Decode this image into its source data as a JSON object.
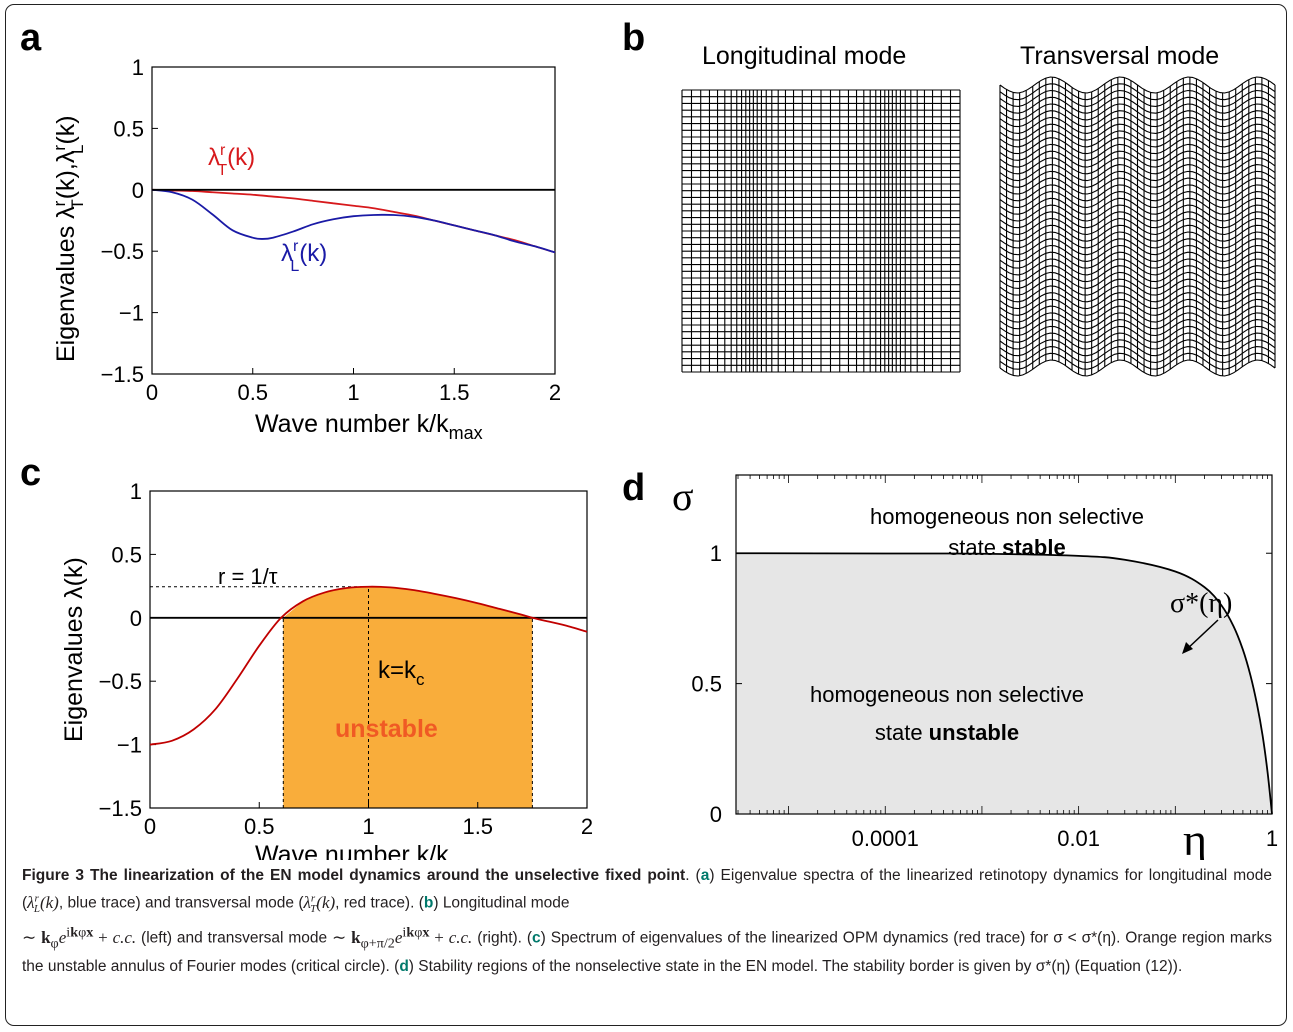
{
  "panels": {
    "a": {
      "label": "a",
      "chart_data": {
        "type": "line",
        "xlabel": "Wave number k/k",
        "xlabel_sub": "max",
        "ylabel": "Eigenvalues λ",
        "xlim": [
          0,
          2
        ],
        "ylim": [
          -1.5,
          1
        ],
        "xticks": [
          "0",
          "0.5",
          "1",
          "1.5",
          "2"
        ],
        "yticks": [
          "1",
          "0.5",
          "0",
          "−0.5",
          "−1",
          "−1.5"
        ],
        "xtick_values": [
          0,
          0.5,
          1,
          1.5,
          2
        ],
        "ytick_values": [
          1,
          0.5,
          0,
          -0.5,
          -1,
          -1.5
        ],
        "series": [
          {
            "name": "λ_T^r(k)",
            "color": "#d7191c",
            "x": [
              0,
              0.1,
              0.2,
              0.3,
              0.4,
              0.5,
              0.6,
              0.7,
              0.8,
              0.9,
              1.0,
              1.1,
              1.2,
              1.3,
              1.4,
              1.5,
              1.6,
              1.7,
              1.8,
              1.9,
              2.0
            ],
            "y": [
              0,
              -0.005,
              -0.01,
              -0.02,
              -0.03,
              -0.04,
              -0.055,
              -0.07,
              -0.09,
              -0.11,
              -0.13,
              -0.15,
              -0.18,
              -0.21,
              -0.25,
              -0.29,
              -0.33,
              -0.37,
              -0.41,
              -0.46,
              -0.51
            ]
          },
          {
            "name": "λ_L^r(k)",
            "color": "#1a1aa6",
            "x": [
              0,
              0.1,
              0.2,
              0.3,
              0.4,
              0.5,
              0.55,
              0.6,
              0.7,
              0.8,
              0.9,
              1.0,
              1.1,
              1.2,
              1.3,
              1.4,
              1.5,
              1.6,
              1.7,
              1.8,
              1.9,
              2.0
            ],
            "y": [
              0,
              -0.02,
              -0.08,
              -0.2,
              -0.33,
              -0.39,
              -0.4,
              -0.39,
              -0.34,
              -0.28,
              -0.24,
              -0.215,
              -0.205,
              -0.205,
              -0.22,
              -0.25,
              -0.29,
              -0.33,
              -0.37,
              -0.42,
              -0.46,
              -0.51
            ]
          },
          {
            "name": "",
            "color": "#000000",
            "x": [
              0,
              2
            ],
            "y": [
              0,
              0
            ]
          }
        ],
        "annotations": [
          {
            "text": "λ",
            "sup": "r",
            "sub": "T",
            "tail": "(k)",
            "color": "#d7191c"
          },
          {
            "text": "λ",
            "sup": "r",
            "sub": "L",
            "tail": "(k)",
            "color": "#1a1aa6"
          }
        ]
      }
    },
    "b": {
      "label": "b",
      "left_title": "Longitudinal mode",
      "right_title": "Transversal mode"
    },
    "c": {
      "label": "c",
      "chart_data": {
        "type": "line",
        "xlabel": "Wave number k/k",
        "xlabel_sub": "c",
        "ylabel": "Eigenvalues λ(k)",
        "xlim": [
          0,
          2
        ],
        "ylim": [
          -1.5,
          1
        ],
        "xticks": [
          "0",
          "0.5",
          "1",
          "1.5",
          "2"
        ],
        "yticks": [
          "1",
          "0.5",
          "0",
          "−0.5",
          "−1",
          "−1.5"
        ],
        "xtick_values": [
          0,
          0.5,
          1,
          1.5,
          2
        ],
        "ytick_values": [
          1,
          0.5,
          0,
          -0.5,
          -1,
          -1.5
        ],
        "series": [
          {
            "name": "λ(k)",
            "color": "#c00000",
            "x": [
              0,
              0.1,
              0.2,
              0.3,
              0.4,
              0.5,
              0.6,
              0.7,
              0.8,
              0.9,
              1.0,
              1.1,
              1.2,
              1.3,
              1.4,
              1.5,
              1.6,
              1.7,
              1.75,
              1.8,
              1.9,
              2.0
            ],
            "y": [
              -1.0,
              -0.97,
              -0.88,
              -0.72,
              -0.48,
              -0.22,
              0.0,
              0.13,
              0.2,
              0.235,
              0.245,
              0.24,
              0.22,
              0.19,
              0.155,
              0.115,
              0.07,
              0.025,
              0.0,
              -0.02,
              -0.06,
              -0.11
            ]
          }
        ],
        "unstable_range": [
          0.61,
          1.75
        ],
        "fill_color": "#f9ad3b",
        "annotations": {
          "r_label": "r = 1/τ",
          "kc_label": "k=k",
          "kc_sub": "c",
          "unstable_label": "unstable",
          "unstable_color": "#f05a24"
        }
      }
    },
    "d": {
      "label": "d",
      "chart_data": {
        "type": "line",
        "xlabel": "η",
        "ylabel": "σ",
        "xscale": "log",
        "xlim": [
          2.86e-06,
          1
        ],
        "ylim": [
          0,
          1.3
        ],
        "xticks": [
          "0.0001",
          "0.01",
          "1"
        ],
        "xtick_values": [
          0.0001,
          0.01,
          1
        ],
        "yticks": [
          "1",
          "0.5",
          "0"
        ],
        "ytick_values": [
          1,
          0.5,
          0
        ],
        "series": [
          {
            "name": "σ*(η)",
            "color": "#000000",
            "x": [
              2.9e-06,
              0.0001,
              0.001,
              0.01,
              0.03,
              0.1,
              0.2,
              0.3,
              0.4,
              0.5,
              0.6,
              0.7,
              0.8,
              0.9,
              1.0
            ],
            "y": [
              1.0,
              0.999,
              0.998,
              0.99,
              0.975,
              0.93,
              0.87,
              0.8,
              0.72,
              0.63,
              0.53,
              0.42,
              0.3,
              0.16,
              0.0
            ]
          }
        ],
        "stable_text": "homogeneous non selective",
        "stable_text2_a": "state ",
        "stable_text2_b": "stable",
        "unstable_text": "homogeneous non selective",
        "unstable_text2_a": "state ",
        "unstable_text2_b": "unstable",
        "border_label": "σ*(η)",
        "unstable_fill": "#e6e6e6"
      }
    }
  },
  "caption": {
    "figure_label": "Figure 3 The linearization of the EN model dynamics around the unselective fixed point",
    "a_lbl": "a",
    "a_text_1": "Eigenvalue spectra of the linearized retinotopy dynamics for longitudinal mode (",
    "a_math_L": "λ",
    "a_text_2": ", blue trace) and transversal mode (",
    "a_text_3": ", red trace). (",
    "b_lbl": "b",
    "b_text_1": "Longitudinal mode",
    "b_text_2": "(left) and transversal mode",
    "b_text_3": "(right). (",
    "c_lbl": "c",
    "c_text": "Spectrum of eigenvalues of the linearized OPM dynamics (red trace) for σ < σ*(η). Orange region marks the unstable annulus of Fourier modes (critical circle). (",
    "d_lbl": "d",
    "d_text": "Stability regions of the nonselective state in the EN model. The stability border is given by σ*(η) (Equation (12))."
  }
}
